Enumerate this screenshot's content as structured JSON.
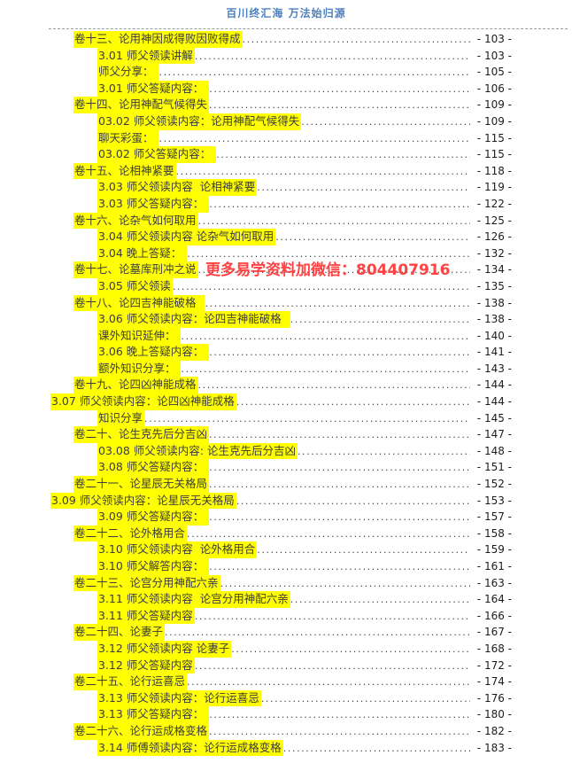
{
  "header": {
    "title": "百川终汇海 万法始归源"
  },
  "watermark": {
    "text": "更多易学资料加微信：804407916"
  },
  "colors": {
    "header_blue": "#4f81bd",
    "highlight_yellow": "#ffff00",
    "watermark_red": "#ff4242",
    "body_text": "#3d3d3d"
  },
  "toc": {
    "entries": [
      {
        "level": "chapter",
        "label": "卷十三、论用神因成得败因败得成",
        "page": "- 103 -"
      },
      {
        "level": "sub",
        "label": "3.01 师父领读讲解",
        "page": "- 103 -"
      },
      {
        "level": "sub",
        "label": "师父分享： ",
        "page": "- 105 -"
      },
      {
        "level": "sub",
        "label": "3.01 师父答疑内容： ",
        "page": "- 106 -"
      },
      {
        "level": "chapter",
        "label": "卷十四、论用神配气候得失",
        "page": "- 109 -"
      },
      {
        "level": "sub",
        "label": "03.02 师父领读内容：论用神配气候得失",
        "page": "- 109 -"
      },
      {
        "level": "sub",
        "label": "聊天彩蛋： ",
        "page": "- 115 -"
      },
      {
        "level": "sub",
        "label": "03.02 师父答疑内容： ",
        "page": "- 115 -"
      },
      {
        "level": "chapter",
        "label": "卷十五、论相神紧要",
        "page": "- 118 -"
      },
      {
        "level": "sub",
        "label": "3.03 师父领读内容  论相神紧要",
        "page": "- 119 -"
      },
      {
        "level": "sub",
        "label": "3.03 师父答疑内容： ",
        "page": "- 122 -"
      },
      {
        "level": "chapter",
        "label": "卷十六、论杂气如何取用",
        "page": "- 125 -"
      },
      {
        "level": "sub",
        "label": "3.04 师父领读内容 论杂气如何取用",
        "page": "- 126 -"
      },
      {
        "level": "sub",
        "label": "3.04 晚上答疑： ",
        "page": "- 132 -"
      },
      {
        "level": "chapter",
        "label": "卷十七、论墓库刑冲之说",
        "page": "- 134 -"
      },
      {
        "level": "sub",
        "label": "3.05 师父领读",
        "page": "- 135 -"
      },
      {
        "level": "chapter",
        "label": "卷十八、论四吉神能破格  ",
        "page": "- 138 -"
      },
      {
        "level": "sub",
        "label": "3.06 师父领读内容：论四吉神能破格  ",
        "page": "- 138 -"
      },
      {
        "level": "sub",
        "label": "课外知识延伸： ",
        "page": "- 140 -"
      },
      {
        "level": "sub",
        "label": "3.06 晚上答疑内容： ",
        "page": "- 141 -"
      },
      {
        "level": "sub",
        "label": "额外知识分享： ",
        "page": "- 143 -"
      },
      {
        "level": "chapter",
        "label": "卷十九、论四凶神能成格",
        "page": "- 144 -"
      },
      {
        "level": "flush",
        "label": "3.07 师父领读内容：论四凶神能成格",
        "page": "- 144 -"
      },
      {
        "level": "sub",
        "label": "知识分享",
        "page": "- 145 -"
      },
      {
        "level": "chapter",
        "label": "卷二十、论生克先后分吉凶",
        "page": "- 147 -"
      },
      {
        "level": "sub",
        "label": "03.08 师父领读内容: 论生克先后分吉凶",
        "page": "- 148 -"
      },
      {
        "level": "sub",
        "label": "3.08 师父答疑内容： ",
        "page": "- 151 -"
      },
      {
        "level": "chapter",
        "label": "卷二十一、论星辰无关格局",
        "page": "- 152 -"
      },
      {
        "level": "flush",
        "label": "3.09 师父领读内容：论星辰无关格局",
        "page": "- 153 -"
      },
      {
        "level": "sub",
        "label": "3.09 师父答疑内容： ",
        "page": "- 157 -"
      },
      {
        "level": "chapter",
        "label": "卷二十二、论外格用合",
        "page": "- 158 -"
      },
      {
        "level": "sub",
        "label": "3.10 师父领读内容  论外格用合",
        "page": "- 159 -"
      },
      {
        "level": "sub",
        "label": "3.10 师父解答内容： ",
        "page": "- 161 -"
      },
      {
        "level": "chapter",
        "label": "卷二十三、论宫分用神配六亲",
        "page": "- 163 -"
      },
      {
        "level": "sub",
        "label": "3.11 师父领读内容  论宫分用神配六亲",
        "page": "- 164 -"
      },
      {
        "level": "sub",
        "label": "3.11 师父答疑内容",
        "page": "- 166 -"
      },
      {
        "level": "chapter",
        "label": "卷二十四、论妻子",
        "page": "- 167 -"
      },
      {
        "level": "sub",
        "label": "3.12 师父领读内容 论妻子",
        "page": "- 168 -"
      },
      {
        "level": "sub",
        "label": "3.12 师父答疑内容",
        "page": "- 172 -"
      },
      {
        "level": "chapter",
        "label": "卷二十五、论行运喜忌",
        "page": "- 174 -"
      },
      {
        "level": "sub",
        "label": "3.13 师父领读内容：论行运喜忌",
        "page": "- 176 -"
      },
      {
        "level": "sub",
        "label": "3.13 师父答疑内容： ",
        "page": "- 180 -"
      },
      {
        "level": "chapter",
        "label": "卷二十六、论行运成格变格",
        "page": "- 182 -"
      },
      {
        "level": "sub",
        "label": "3.14 师傅领读内容：论行运成格变格",
        "page": "- 183 -"
      }
    ]
  }
}
